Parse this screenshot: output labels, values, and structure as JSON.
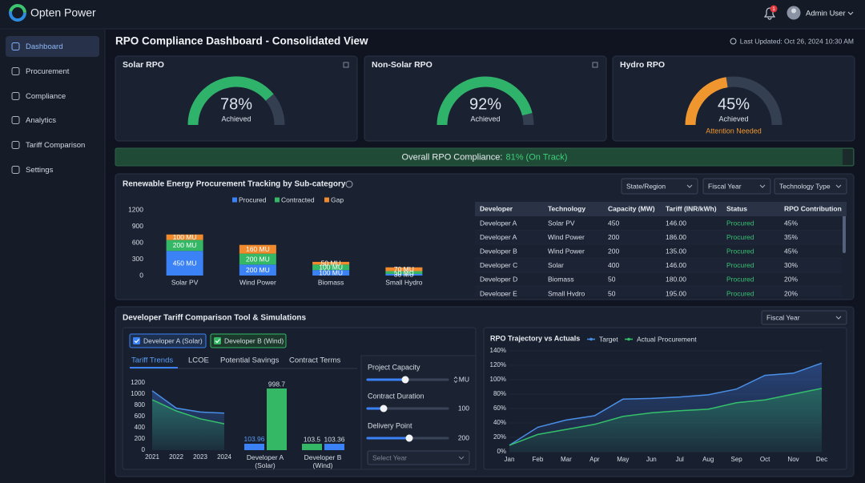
{
  "brand": "Opten Power",
  "notification_count": 1,
  "user": "Admin User",
  "nav": [
    "Dashboard",
    "Procurement",
    "Compliance",
    "Analytics",
    "Tariff Comparison",
    "Settings"
  ],
  "title": "RPO Compliance Dashboard - Consolidated View",
  "last_updated": "Last Updated: Oct 26, 2024 10:30 AM",
  "gauges": [
    {
      "title": "Solar RPO",
      "value": 78,
      "value_label": "78%",
      "status": "Achieved",
      "color": "#2fb36b"
    },
    {
      "title": "Non-Solar RPO",
      "value": 92,
      "value_label": "92%",
      "status": "Achieved",
      "color": "#2fb36b"
    },
    {
      "title": "Hydro RPO",
      "value": 45,
      "value_label": "45%",
      "status": "Achieved",
      "note": "Attention Needed",
      "color": "#f0962e"
    }
  ],
  "overall": {
    "label": "Overall RPO Compliance:",
    "status": "81% (On Track)"
  },
  "procurement": {
    "title": "Renewable Energy Procurement Tracking by Sub-category",
    "filters": [
      "State/Region",
      "Fiscal Year",
      "Technology Type"
    ],
    "chart": {
      "type": "stacked-bar",
      "categories": [
        "Solar PV",
        "Wind Power",
        "Biomass",
        "Small Hydro"
      ],
      "series": [
        {
          "name": "Procured",
          "color": "#3b82f6",
          "values": [
            450,
            200,
            100,
            30
          ],
          "value_labels": [
            "450 MU",
            "200 MU",
            "100 MU",
            "30 MU"
          ]
        },
        {
          "name": "Contracted",
          "color": "#34b866",
          "values": [
            200,
            200,
            100,
            50
          ],
          "value_labels": [
            "200 MU",
            "200 MU",
            "100 MU",
            "50 MU"
          ]
        },
        {
          "name": "Gap",
          "color": "#f08a2c",
          "values": [
            100,
            160,
            50,
            70
          ],
          "value_labels": [
            "100 MU",
            "160 MU",
            "50 MU",
            "70 MU"
          ]
        }
      ],
      "ylim": [
        0,
        1200
      ],
      "yticks": [
        0,
        300,
        600,
        900,
        1200
      ]
    },
    "table": {
      "columns": [
        "Developer",
        "Technology",
        "Capacity (MW)",
        "Tariff (INR/kWh)",
        "Status",
        "RPO Contribution"
      ],
      "rows": [
        [
          "Developer A",
          "Solar PV",
          "450",
          "146.00",
          "Procured",
          "45%"
        ],
        [
          "Developer A",
          "Wind Power",
          "200",
          "186.00",
          "Procured",
          "35%"
        ],
        [
          "Developer B",
          "Wind Power",
          "200",
          "135.00",
          "Procured",
          "45%"
        ],
        [
          "Developer C",
          "Solar",
          "400",
          "146.00",
          "Procured",
          "30%"
        ],
        [
          "Developer D",
          "Biomass",
          "50",
          "180.00",
          "Procured",
          "20%"
        ],
        [
          "Developer E",
          "Small Hydro",
          "50",
          "195.00",
          "Procured",
          "20%"
        ]
      ]
    }
  },
  "tariff": {
    "title": "Developer Tariff Comparison Tool & Simulations",
    "filter": "Fiscal Year",
    "developers": [
      "Developer A (Solar)",
      "Developer B (Wind)"
    ],
    "tabs": [
      "Tariff Trends",
      "LCOE",
      "Potential Savings",
      "Contract Terms"
    ],
    "trend_chart": {
      "type": "line",
      "categories": [
        "2021",
        "2022",
        "2023",
        "2024"
      ],
      "series": [
        {
          "color": "#4a8fe7",
          "values": [
            1060,
            750,
            680,
            660
          ]
        },
        {
          "color": "#34c06b",
          "values": [
            900,
            700,
            560,
            470
          ]
        }
      ],
      "ylim": [
        0,
        1200
      ],
      "yticks": [
        0,
        200,
        400,
        600,
        800,
        1000,
        1200
      ]
    },
    "comparison_chart": {
      "type": "bar",
      "groups": [
        {
          "category": "Developer A (Solar)",
          "bars": [
            {
              "value": 103.96,
              "color": "#3b82f6"
            },
            {
              "value": 998.7,
              "color": "#34b866"
            }
          ]
        },
        {
          "category": "Developer B (Wind)",
          "bars": [
            {
              "value": 103.5,
              "color": "#34b866"
            },
            {
              "value": 103.36,
              "color": "#3b82f6"
            }
          ]
        }
      ]
    },
    "simulation": {
      "sliders": [
        {
          "label": "Project Capacity",
          "unit": "MU"
        },
        {
          "label": "Contract Duration",
          "value": 100
        },
        {
          "label": "Delivery Point",
          "value": 200
        }
      ],
      "select": "Select Year"
    },
    "trajectory": {
      "type": "line",
      "title": "RPO Trajectory vs Actuals",
      "categories": [
        "Jan",
        "Feb",
        "Mar",
        "Apr",
        "May",
        "Jun",
        "Jul",
        "Aug",
        "Sep",
        "Oct",
        "Nov",
        "Dec"
      ],
      "series": [
        {
          "name": "Target",
          "color": "#4a8fe7",
          "values": [
            9,
            34,
            44,
            50,
            73,
            74,
            76,
            79,
            87,
            106,
            109,
            123
          ]
        },
        {
          "name": "Actual Procurement",
          "color": "#34c06b",
          "values": [
            9,
            24,
            31,
            38,
            49,
            54,
            57,
            59,
            68,
            72,
            80,
            88
          ]
        }
      ],
      "ylim": [
        0,
        140
      ],
      "yticks": [
        {
          "value": 0,
          "label": "0%"
        },
        {
          "value": 20,
          "label": "20%"
        },
        {
          "value": 40,
          "label": "40%"
        },
        {
          "value": 60,
          "label": "60%"
        },
        {
          "value": 80,
          "label": "80%"
        },
        {
          "value": 100,
          "label": "100%"
        },
        {
          "value": 120,
          "label": "120%"
        },
        {
          "value": 140,
          "label": "140%"
        }
      ]
    }
  }
}
